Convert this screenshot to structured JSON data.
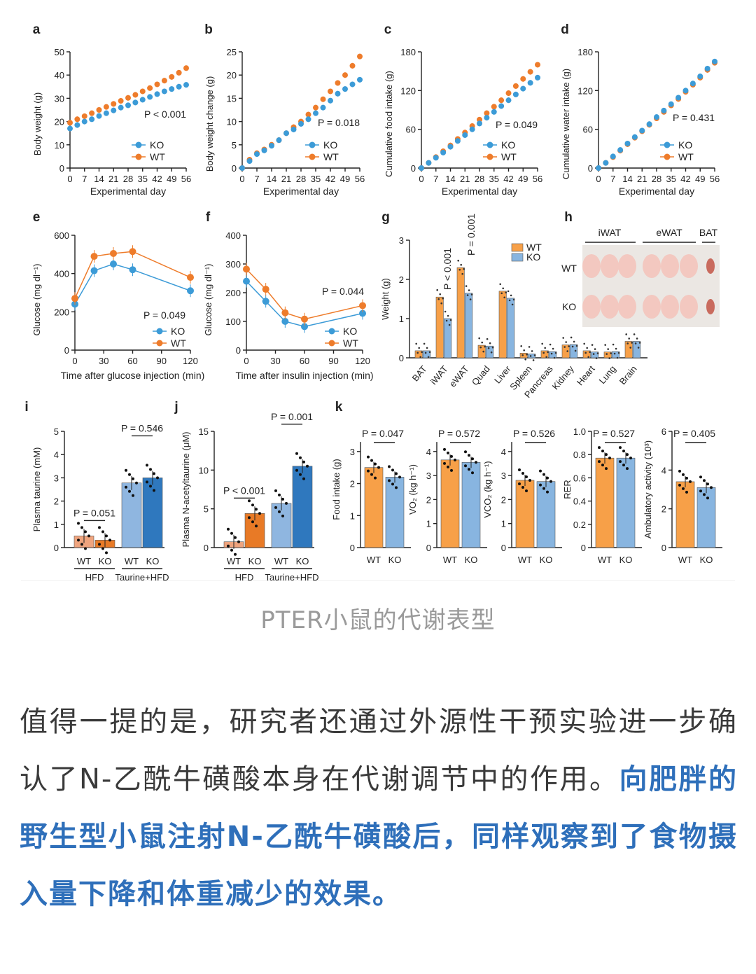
{
  "colors": {
    "wt": "#EE7C2B",
    "ko": "#3C9BD7",
    "wt_bar": "#F7A048",
    "ko_bar": "#88B5E0",
    "wt_dark": "#E86F1E",
    "ko_dark": "#2E73B8",
    "hfd_wt": "#EFA47E",
    "hfd_ko": "#E87A26",
    "tau_wt": "#8FB6E0",
    "tau_ko": "#2F78BE",
    "highlight": "#2e6fba"
  },
  "panels": {
    "a": {
      "letter": "a",
      "ylabel": "Body weight (g)",
      "xlabel": "Experimental day",
      "p": "P < 0.001",
      "yticks": [
        "0",
        "10",
        "20",
        "30",
        "40",
        "50"
      ],
      "xticks": [
        "0",
        "7",
        "14",
        "21",
        "28",
        "35",
        "42",
        "49",
        "56"
      ]
    },
    "b": {
      "letter": "b",
      "ylabel": "Body weight change (g)",
      "xlabel": "Experimental day",
      "p": "P = 0.018",
      "yticks": [
        "0",
        "5",
        "10",
        "15",
        "20",
        "25"
      ],
      "xticks": [
        "0",
        "7",
        "14",
        "21",
        "28",
        "35",
        "42",
        "49",
        "56"
      ]
    },
    "c": {
      "letter": "c",
      "ylabel": "Cumulative food intake (g)",
      "xlabel": "Experimental day",
      "p": "P = 0.049",
      "yticks": [
        "0",
        "60",
        "120",
        "180"
      ],
      "xticks": [
        "0",
        "7",
        "14",
        "21",
        "28",
        "35",
        "42",
        "49",
        "56"
      ]
    },
    "d": {
      "letter": "d",
      "ylabel": "Cumulative water intake (g)",
      "xlabel": "Experimental day",
      "p": "P = 0.431",
      "yticks": [
        "0",
        "60",
        "120",
        "180"
      ],
      "xticks": [
        "0",
        "7",
        "14",
        "21",
        "28",
        "35",
        "42",
        "49",
        "56"
      ]
    },
    "e": {
      "letter": "e",
      "ylabel": "Glucose (mg dl⁻¹)",
      "xlabel": "Time after glucose injection (min)",
      "p": "P = 0.049",
      "yticks": [
        "0",
        "200",
        "400",
        "600"
      ],
      "xticks": [
        "0",
        "30",
        "60",
        "90",
        "120"
      ]
    },
    "f": {
      "letter": "f",
      "ylabel": "Glucose (mg dl⁻¹)",
      "xlabel": "Time after insulin injection (min)",
      "p": "P = 0.044",
      "yticks": [
        "0",
        "100",
        "200",
        "300",
        "400"
      ],
      "xticks": [
        "0",
        "30",
        "60",
        "90",
        "120"
      ]
    },
    "g": {
      "letter": "g",
      "ylabel": "Weight (g)",
      "yticks": [
        "0",
        "1",
        "2",
        "3"
      ],
      "p1": "P < 0.001",
      "p2": "P = 0.001",
      "tissues": [
        "BAT",
        "iWAT",
        "eWAT",
        "Quad",
        "Liver",
        "Spleen",
        "Pancreas",
        "Kidney",
        "Heart",
        "Lung",
        "Brain"
      ]
    },
    "h": {
      "letter": "h",
      "cols": [
        "iWAT",
        "eWAT",
        "BAT"
      ],
      "rows": [
        "WT",
        "KO"
      ]
    },
    "i": {
      "letter": "i",
      "ylabel": "Plasma taurine (mM)",
      "yticks": [
        "0",
        "1",
        "2",
        "3",
        "4",
        "5"
      ],
      "p1": "P = 0.051",
      "p2": "P = 0.546",
      "groups": [
        "HFD",
        "Taurine+HFD"
      ]
    },
    "j": {
      "letter": "j",
      "ylabel": "Plasma N-acetyltaurine (μM)",
      "yticks": [
        "0",
        "5",
        "10",
        "15"
      ],
      "p1": "P < 0.001",
      "p2": "P = 0.001",
      "groups": [
        "HFD",
        "Taurine+HFD"
      ]
    },
    "k": {
      "letter": "k",
      "subs": [
        {
          "ylabel": "Food intake (g)",
          "p": "P = 0.047",
          "yticks": [
            "0",
            "1",
            "2",
            "3"
          ]
        },
        {
          "ylabel": "VO₂ (kg h⁻¹)",
          "p": "P = 0.572",
          "yticks": [
            "0",
            "1",
            "2",
            "3",
            "4"
          ]
        },
        {
          "ylabel": "VCO₂ (kg h⁻¹)",
          "p": "P = 0.526",
          "yticks": [
            "0",
            "1",
            "2",
            "3",
            "4"
          ]
        },
        {
          "ylabel": "RER",
          "p": "P = 0.527",
          "yticks": [
            "0",
            "0.2",
            "0.4",
            "0.6",
            "0.8",
            "1.0"
          ]
        },
        {
          "ylabel": "Ambulatory activity (10³)",
          "p": "P = 0.405",
          "yticks": [
            "0",
            "2",
            "4",
            "6"
          ]
        }
      ]
    }
  },
  "legend": {
    "ko": "KO",
    "wt": "WT"
  },
  "group_labels": {
    "wt": "WT",
    "ko": "KO"
  },
  "chart_data": [
    {
      "type": "scatter",
      "title": "a",
      "xlabel": "Experimental day",
      "ylabel": "Body weight (g)",
      "xlim": [
        0,
        56
      ],
      "ylim": [
        0,
        50
      ],
      "series": [
        {
          "name": "KO",
          "x": [
            0,
            3.5,
            7,
            10.5,
            14,
            17.5,
            21,
            24.5,
            28,
            31.5,
            35,
            38.5,
            42,
            45.5,
            49,
            52.5,
            56
          ],
          "y": [
            17,
            18.5,
            20,
            21,
            22.4,
            23.6,
            24.8,
            26,
            27,
            28.2,
            29.4,
            30.6,
            31.8,
            33,
            34,
            35,
            35.8
          ]
        },
        {
          "name": "WT",
          "x": [
            0,
            3.5,
            7,
            10.5,
            14,
            17.5,
            21,
            24.5,
            28,
            31.5,
            35,
            38.5,
            42,
            45.5,
            49,
            52.5,
            56
          ],
          "y": [
            19.5,
            21,
            22.3,
            23.6,
            25,
            26.3,
            27.6,
            28.9,
            30.2,
            31.5,
            33,
            34.4,
            36,
            37.6,
            39.2,
            41,
            43
          ]
        }
      ]
    },
    {
      "type": "scatter",
      "title": "b",
      "xlabel": "Experimental day",
      "ylabel": "Body weight change (g)",
      "xlim": [
        0,
        56
      ],
      "ylim": [
        0,
        25
      ],
      "series": [
        {
          "name": "KO",
          "x": [
            0,
            3.5,
            7,
            10.5,
            14,
            17.5,
            21,
            24.5,
            28,
            31.5,
            35,
            38.5,
            42,
            45.5,
            49,
            52.5,
            56
          ],
          "y": [
            0,
            1.5,
            3,
            3.8,
            4.8,
            6,
            7.5,
            8.3,
            9.5,
            10.5,
            11.8,
            13,
            14.5,
            16,
            17,
            18,
            19
          ]
        },
        {
          "name": "WT",
          "x": [
            0,
            3.5,
            7,
            10.5,
            14,
            17.5,
            21,
            24.5,
            28,
            31.5,
            35,
            38.5,
            42,
            45.5,
            49,
            52.5,
            56
          ],
          "y": [
            0,
            1.8,
            3.2,
            4,
            5,
            6,
            7.5,
            8.8,
            10,
            11.5,
            13,
            14.8,
            16.5,
            18.3,
            20,
            22,
            24
          ]
        }
      ]
    },
    {
      "type": "scatter",
      "title": "c",
      "xlabel": "Experimental day",
      "ylabel": "Cumulative food intake (g)",
      "xlim": [
        0,
        56
      ],
      "ylim": [
        0,
        180
      ],
      "series": [
        {
          "name": "KO",
          "x": [
            0,
            3.5,
            7,
            10.5,
            14,
            17.5,
            21,
            24.5,
            28,
            31.5,
            35,
            38.5,
            42,
            45.5,
            49,
            52.5,
            56
          ],
          "y": [
            0,
            8,
            16,
            24,
            33,
            42,
            51,
            60,
            69,
            78,
            87,
            96,
            105,
            114,
            123,
            132,
            140
          ]
        },
        {
          "name": "WT",
          "x": [
            0,
            3.5,
            7,
            10.5,
            14,
            17.5,
            21,
            24.5,
            28,
            31.5,
            35,
            38.5,
            42,
            45.5,
            49,
            52.5,
            56
          ],
          "y": [
            0,
            8,
            17,
            26,
            35,
            45,
            55,
            65,
            75,
            85,
            95,
            105,
            116,
            127,
            138,
            149,
            160
          ]
        }
      ]
    },
    {
      "type": "scatter",
      "title": "d",
      "xlabel": "Experimental day",
      "ylabel": "Cumulative water intake (g)",
      "xlim": [
        0,
        56
      ],
      "ylim": [
        0,
        180
      ],
      "series": [
        {
          "name": "KO",
          "x": [
            0,
            3.5,
            7,
            10.5,
            14,
            17.5,
            21,
            24.5,
            28,
            31.5,
            35,
            38.5,
            42,
            45.5,
            49,
            52.5,
            56
          ],
          "y": [
            0,
            8,
            18,
            28,
            38,
            48,
            58,
            68,
            79,
            89,
            99,
            109,
            120,
            131,
            142,
            154,
            165
          ]
        },
        {
          "name": "WT",
          "x": [
            0,
            3.5,
            7,
            10.5,
            14,
            17.5,
            21,
            24.5,
            28,
            31.5,
            35,
            38.5,
            42,
            45.5,
            49,
            52.5,
            56
          ],
          "y": [
            0,
            8,
            17,
            27,
            37,
            47,
            57,
            67,
            77,
            87,
            97,
            107,
            118,
            129,
            140,
            152,
            163
          ]
        }
      ]
    },
    {
      "type": "line",
      "title": "e",
      "xlabel": "Time after glucose injection (min)",
      "ylabel": "Glucose (mg dl⁻¹)",
      "xlim": [
        0,
        120
      ],
      "ylim": [
        0,
        600
      ],
      "series": [
        {
          "name": "KO",
          "x": [
            0,
            20,
            40,
            60,
            120
          ],
          "y": [
            240,
            415,
            450,
            420,
            310
          ]
        },
        {
          "name": "WT",
          "x": [
            0,
            20,
            40,
            60,
            120
          ],
          "y": [
            270,
            490,
            505,
            515,
            380
          ]
        }
      ]
    },
    {
      "type": "line",
      "title": "f",
      "xlabel": "Time after insulin injection (min)",
      "ylabel": "Glucose (mg dl⁻¹)",
      "xlim": [
        0,
        120
      ],
      "ylim": [
        0,
        400
      ],
      "series": [
        {
          "name": "KO",
          "x": [
            0,
            20,
            40,
            60,
            120
          ],
          "y": [
            240,
            170,
            100,
            82,
            128
          ]
        },
        {
          "name": "WT",
          "x": [
            0,
            20,
            40,
            60,
            120
          ],
          "y": [
            282,
            212,
            130,
            108,
            155
          ]
        }
      ]
    },
    {
      "type": "bar",
      "title": "g",
      "ylabel": "Weight (g)",
      "ylim": [
        0,
        3
      ],
      "categories": [
        "BAT",
        "iWAT",
        "eWAT",
        "Quad",
        "Liver",
        "Spleen",
        "Pancreas",
        "Kidney",
        "Heart",
        "Lung",
        "Brain"
      ],
      "series": [
        {
          "name": "WT",
          "values": [
            0.18,
            1.55,
            2.3,
            0.32,
            1.7,
            0.12,
            0.18,
            0.33,
            0.18,
            0.15,
            0.42
          ]
        },
        {
          "name": "KO",
          "values": [
            0.18,
            1.0,
            1.65,
            0.3,
            1.52,
            0.1,
            0.16,
            0.34,
            0.15,
            0.16,
            0.42
          ]
        }
      ]
    },
    {
      "type": "bar",
      "title": "i",
      "ylabel": "Plasma taurine (mM)",
      "ylim": [
        0,
        5
      ],
      "categories": [
        "HFD WT",
        "HFD KO",
        "Taurine+HFD WT",
        "Taurine+HFD KO"
      ],
      "values": [
        0.5,
        0.32,
        2.78,
        3.0
      ]
    },
    {
      "type": "bar",
      "title": "j",
      "ylabel": "Plasma N-acetyltaurine (μM)",
      "ylim": [
        0,
        15
      ],
      "categories": [
        "HFD WT",
        "HFD KO",
        "Taurine+HFD WT",
        "Taurine+HFD KO"
      ],
      "values": [
        0.75,
        4.4,
        5.7,
        10.5
      ]
    },
    {
      "type": "bar",
      "title": "k",
      "categories": [
        "WT",
        "KO"
      ],
      "series": [
        {
          "name": "Food intake (g)",
          "values": [
            2.5,
            2.2
          ],
          "ylim": [
            0,
            3
          ]
        },
        {
          "name": "VO₂ (kg h⁻¹)",
          "values": [
            3.65,
            3.55
          ],
          "ylim": [
            0,
            4
          ]
        },
        {
          "name": "VCO₂ (kg h⁻¹)",
          "values": [
            2.8,
            2.75
          ],
          "ylim": [
            0,
            4
          ]
        },
        {
          "name": "RER",
          "values": [
            0.77,
            0.77
          ],
          "ylim": [
            0,
            1
          ]
        },
        {
          "name": "Ambulatory activity (10³)",
          "values": [
            3.4,
            3.1
          ],
          "ylim": [
            0,
            6
          ]
        }
      ]
    }
  ],
  "caption": "PTER小鼠的代谢表型",
  "article": {
    "part1": "值得一提的是，研究者还通过外源性干预实验进一步确认了N-乙酰牛磺酸本身在代谢调节中的作用。",
    "part2": "向肥胖的野生型小鼠注射N-乙酰牛磺酸后，同样观察到了食物摄入量下降和体重减少的效果。"
  }
}
